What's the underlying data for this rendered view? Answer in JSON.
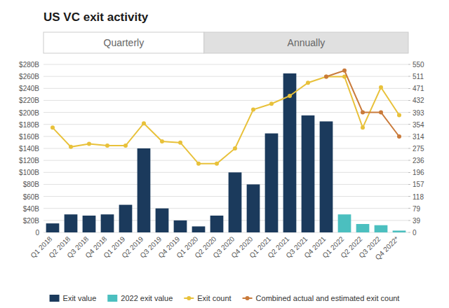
{
  "chart_data": {
    "type": "bar",
    "title": "US VC exit activity",
    "annotations": [
      "Quarterly",
      "Annually"
    ],
    "categories": [
      "Q1 2018",
      "Q2 2018",
      "Q3 2018",
      "Q4 2018",
      "Q1 2019",
      "Q2 2019",
      "Q3 2019",
      "Q4 2019",
      "Q1 2020",
      "Q2 2020",
      "Q3 2020",
      "Q4 2020",
      "Q1 2021",
      "Q2 2021",
      "Q3 2021",
      "Q4 2021",
      "Q1 2022",
      "Q2 2022",
      "Q3 2022",
      "Q4 2022*"
    ],
    "series": [
      {
        "name": "Exit value",
        "type": "bar",
        "color": "#1b3a5c",
        "values": [
          15,
          30,
          28,
          30,
          46,
          140,
          40,
          20,
          10,
          28,
          100,
          80,
          165,
          265,
          195,
          185,
          0,
          0,
          0,
          0
        ]
      },
      {
        "name": "2022 exit value",
        "type": "bar",
        "color": "#4bbfbf",
        "values": [
          0,
          0,
          0,
          0,
          0,
          0,
          0,
          0,
          0,
          0,
          0,
          0,
          0,
          0,
          0,
          0,
          30,
          14,
          12,
          3
        ]
      },
      {
        "name": "Exit count",
        "type": "line",
        "axis": "y2",
        "color": "#e8c13a",
        "marker": "circle",
        "values": [
          343,
          280,
          290,
          284,
          284,
          357,
          298,
          294,
          225,
          225,
          275,
          402,
          421,
          447,
          490,
          510,
          510,
          343,
          475,
          384
        ]
      },
      {
        "name": "Combined actual and estimated exit count",
        "type": "line",
        "axis": "y2",
        "color": "#c97a3a",
        "marker": "circle",
        "values": [
          null,
          null,
          null,
          null,
          null,
          null,
          null,
          null,
          null,
          null,
          null,
          null,
          null,
          null,
          null,
          510,
          530,
          393,
          393,
          314
        ]
      }
    ],
    "ylim": [
      0,
      280
    ],
    "yticks": [
      0,
      {
        "value": 20,
        "label": "$20B"
      },
      {
        "value": 40,
        "label": "$40B"
      },
      {
        "value": 60,
        "label": "$60B"
      },
      {
        "value": 80,
        "label": "$80B"
      },
      {
        "value": 100,
        "label": "$100B"
      },
      {
        "value": 120,
        "label": "$120B"
      },
      {
        "value": 140,
        "label": "$140B"
      },
      {
        "value": 160,
        "label": "$160B"
      },
      {
        "value": 180,
        "label": "$180B"
      },
      {
        "value": 200,
        "label": "$200B"
      },
      {
        "value": 220,
        "label": "$220B"
      },
      {
        "value": 240,
        "label": "$240B"
      },
      {
        "value": 260,
        "label": "$260B"
      },
      {
        "value": 280,
        "label": "$280B"
      }
    ],
    "y2lim": [
      0,
      550
    ],
    "y2ticks": [
      0,
      39,
      79,
      118,
      157,
      196,
      236,
      275,
      314,
      354,
      393,
      432,
      471,
      511,
      550
    ],
    "grid": true,
    "legend": "bottom"
  }
}
